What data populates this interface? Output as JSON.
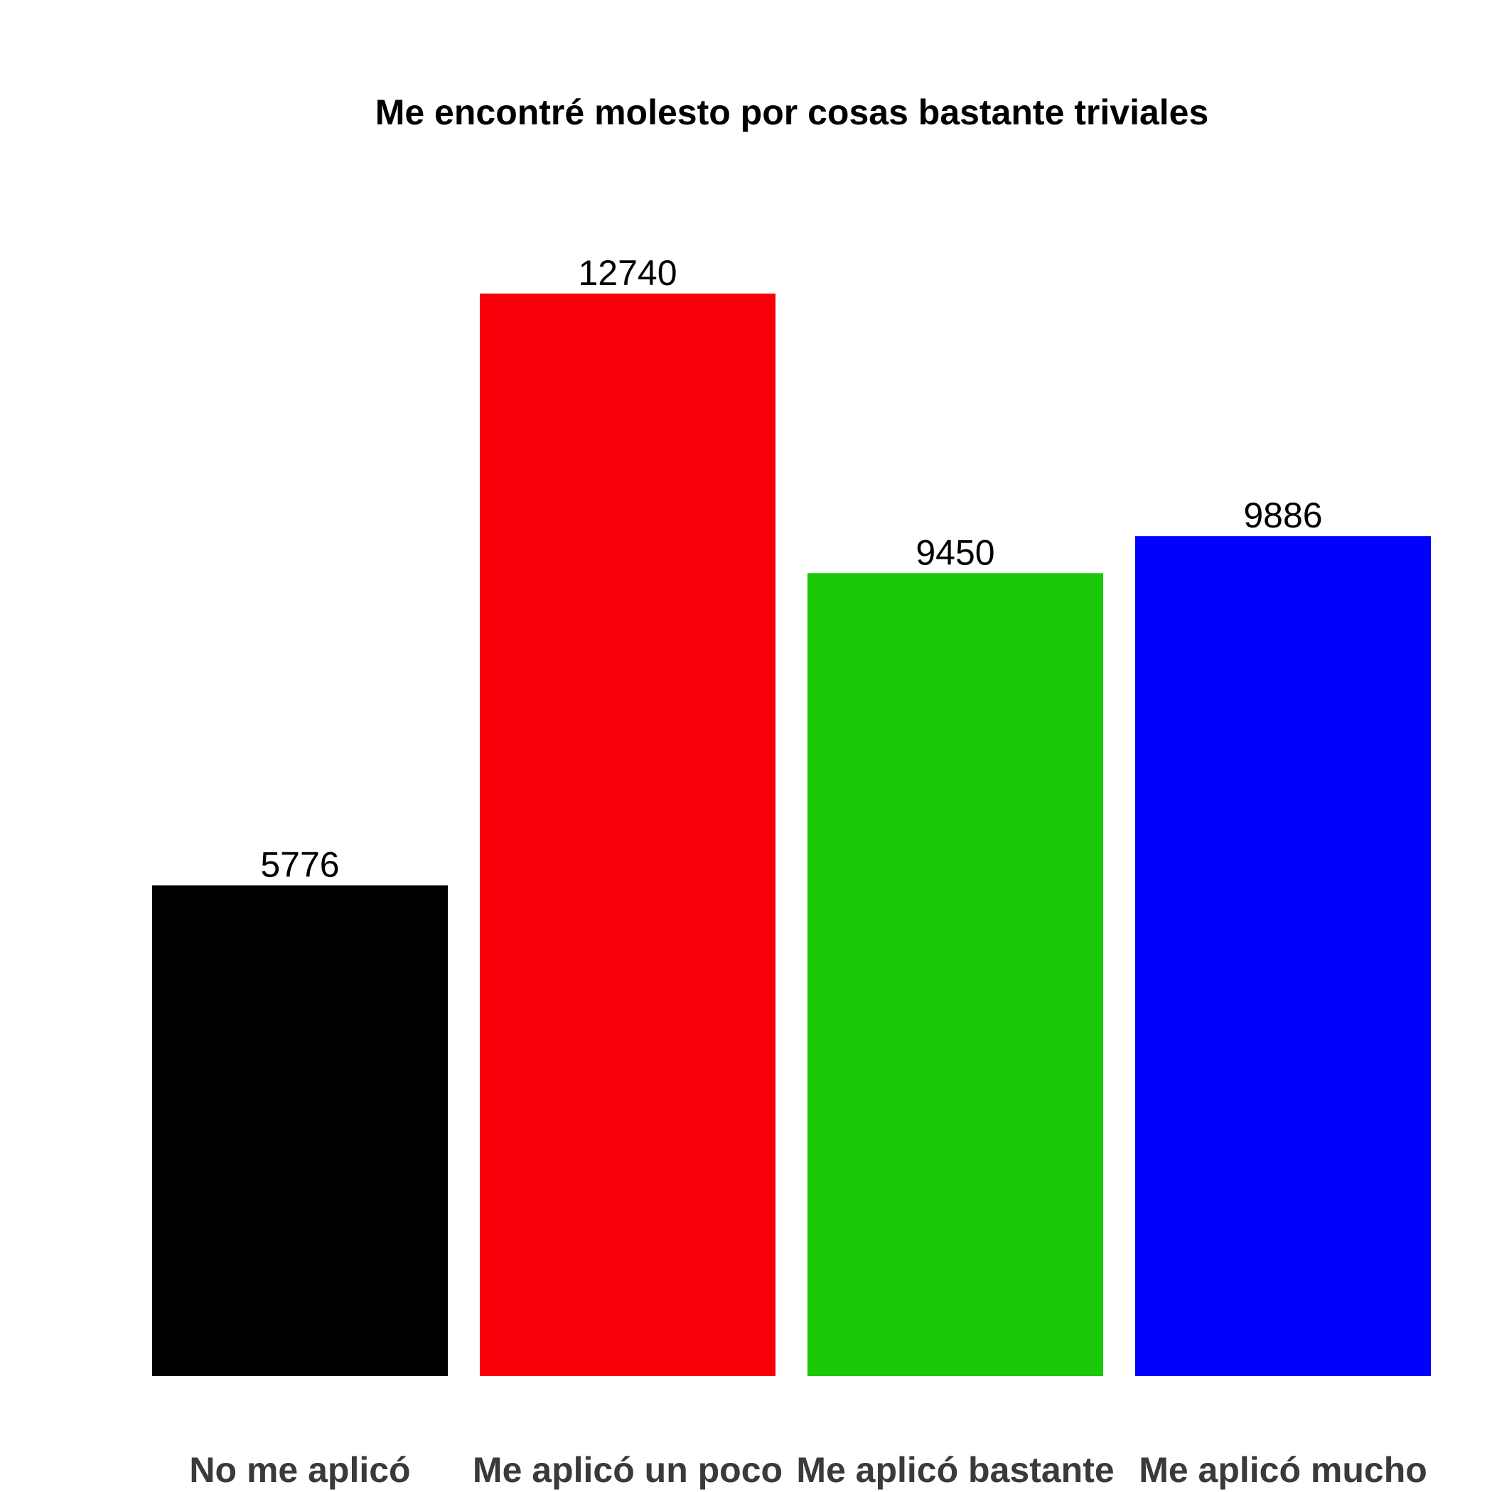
{
  "chart_data": {
    "type": "bar",
    "title": "Me encontré molesto por cosas bastante triviales",
    "xlabel": "",
    "ylabel": "",
    "categories": [
      "No me aplicó",
      "Me aplicó un poco",
      "Me aplicó bastante",
      "Me aplicó mucho"
    ],
    "values": [
      5776,
      12740,
      9450,
      9886
    ],
    "colors": [
      "#000000",
      "#f8000a",
      "#1ac806",
      "#0000fd"
    ],
    "ylim": [
      0,
      14000
    ],
    "grid": false,
    "legend": "none",
    "data_labels": true
  }
}
